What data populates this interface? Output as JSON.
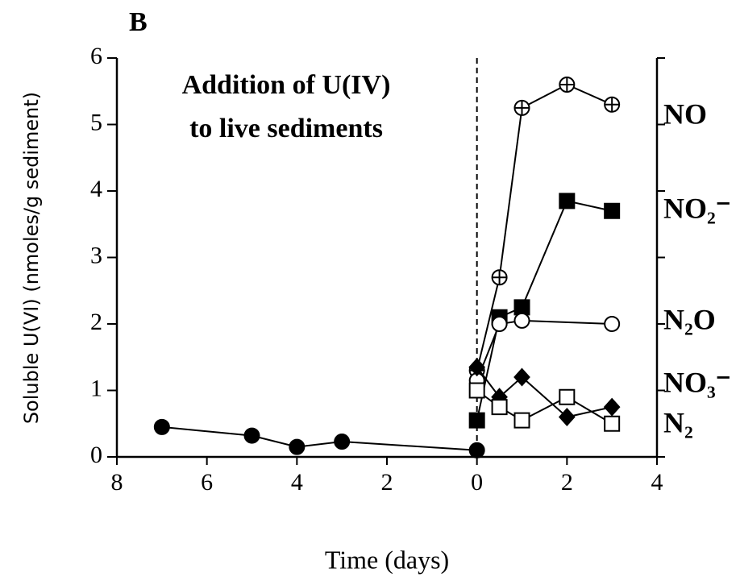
{
  "chart_data": {
    "type": "line",
    "title": "B",
    "annotation": [
      "Addition of U(IV)",
      "to live sediments"
    ],
    "x_label": "Time (days)",
    "y_label": "Soluble U(VI) (nmoles/g sediment)",
    "xlim": [
      -8,
      4
    ],
    "xticks": [
      {
        "value": -8,
        "label": "8"
      },
      {
        "value": -6,
        "label": "6"
      },
      {
        "value": -4,
        "label": "4"
      },
      {
        "value": -2,
        "label": "2"
      },
      0,
      2,
      4
    ],
    "ylim": [
      0,
      6
    ],
    "yticks": [
      0,
      1,
      2,
      3,
      4,
      5,
      6
    ],
    "divider_x": 0,
    "series": [
      {
        "marker": "circle-filled",
        "color": "#000000",
        "x": [
          -7,
          -5,
          -4,
          -3,
          0
        ],
        "values": [
          0.45,
          0.32,
          0.15,
          0.23,
          0.1
        ]
      },
      {
        "name": "NO",
        "marker": "circle-cross",
        "color": "#000000",
        "x": [
          0,
          0.5,
          1,
          2,
          3
        ],
        "values": [
          1.3,
          2.7,
          5.25,
          5.6,
          5.3
        ]
      },
      {
        "name": "NO₂⁻",
        "marker": "square-filled",
        "color": "#000000",
        "x": [
          0,
          0.5,
          1,
          2,
          3
        ],
        "values": [
          0.55,
          2.1,
          2.25,
          3.85,
          3.7
        ]
      },
      {
        "name": "N₂O",
        "marker": "circle-open",
        "color": "#000000",
        "x": [
          0,
          0.5,
          1,
          3
        ],
        "values": [
          1.15,
          2.0,
          2.05,
          2.0
        ]
      },
      {
        "name": "NO₃⁻",
        "marker": "diamond-filled",
        "color": "#000000",
        "x": [
          0,
          0.5,
          1,
          2,
          3
        ],
        "values": [
          1.35,
          0.9,
          1.2,
          0.6,
          0.75
        ]
      },
      {
        "name": "N₂",
        "marker": "square-open",
        "color": "#000000",
        "x": [
          0,
          0.5,
          1,
          2,
          3
        ],
        "values": [
          1.0,
          0.75,
          0.55,
          0.9,
          0.5
        ]
      }
    ]
  }
}
